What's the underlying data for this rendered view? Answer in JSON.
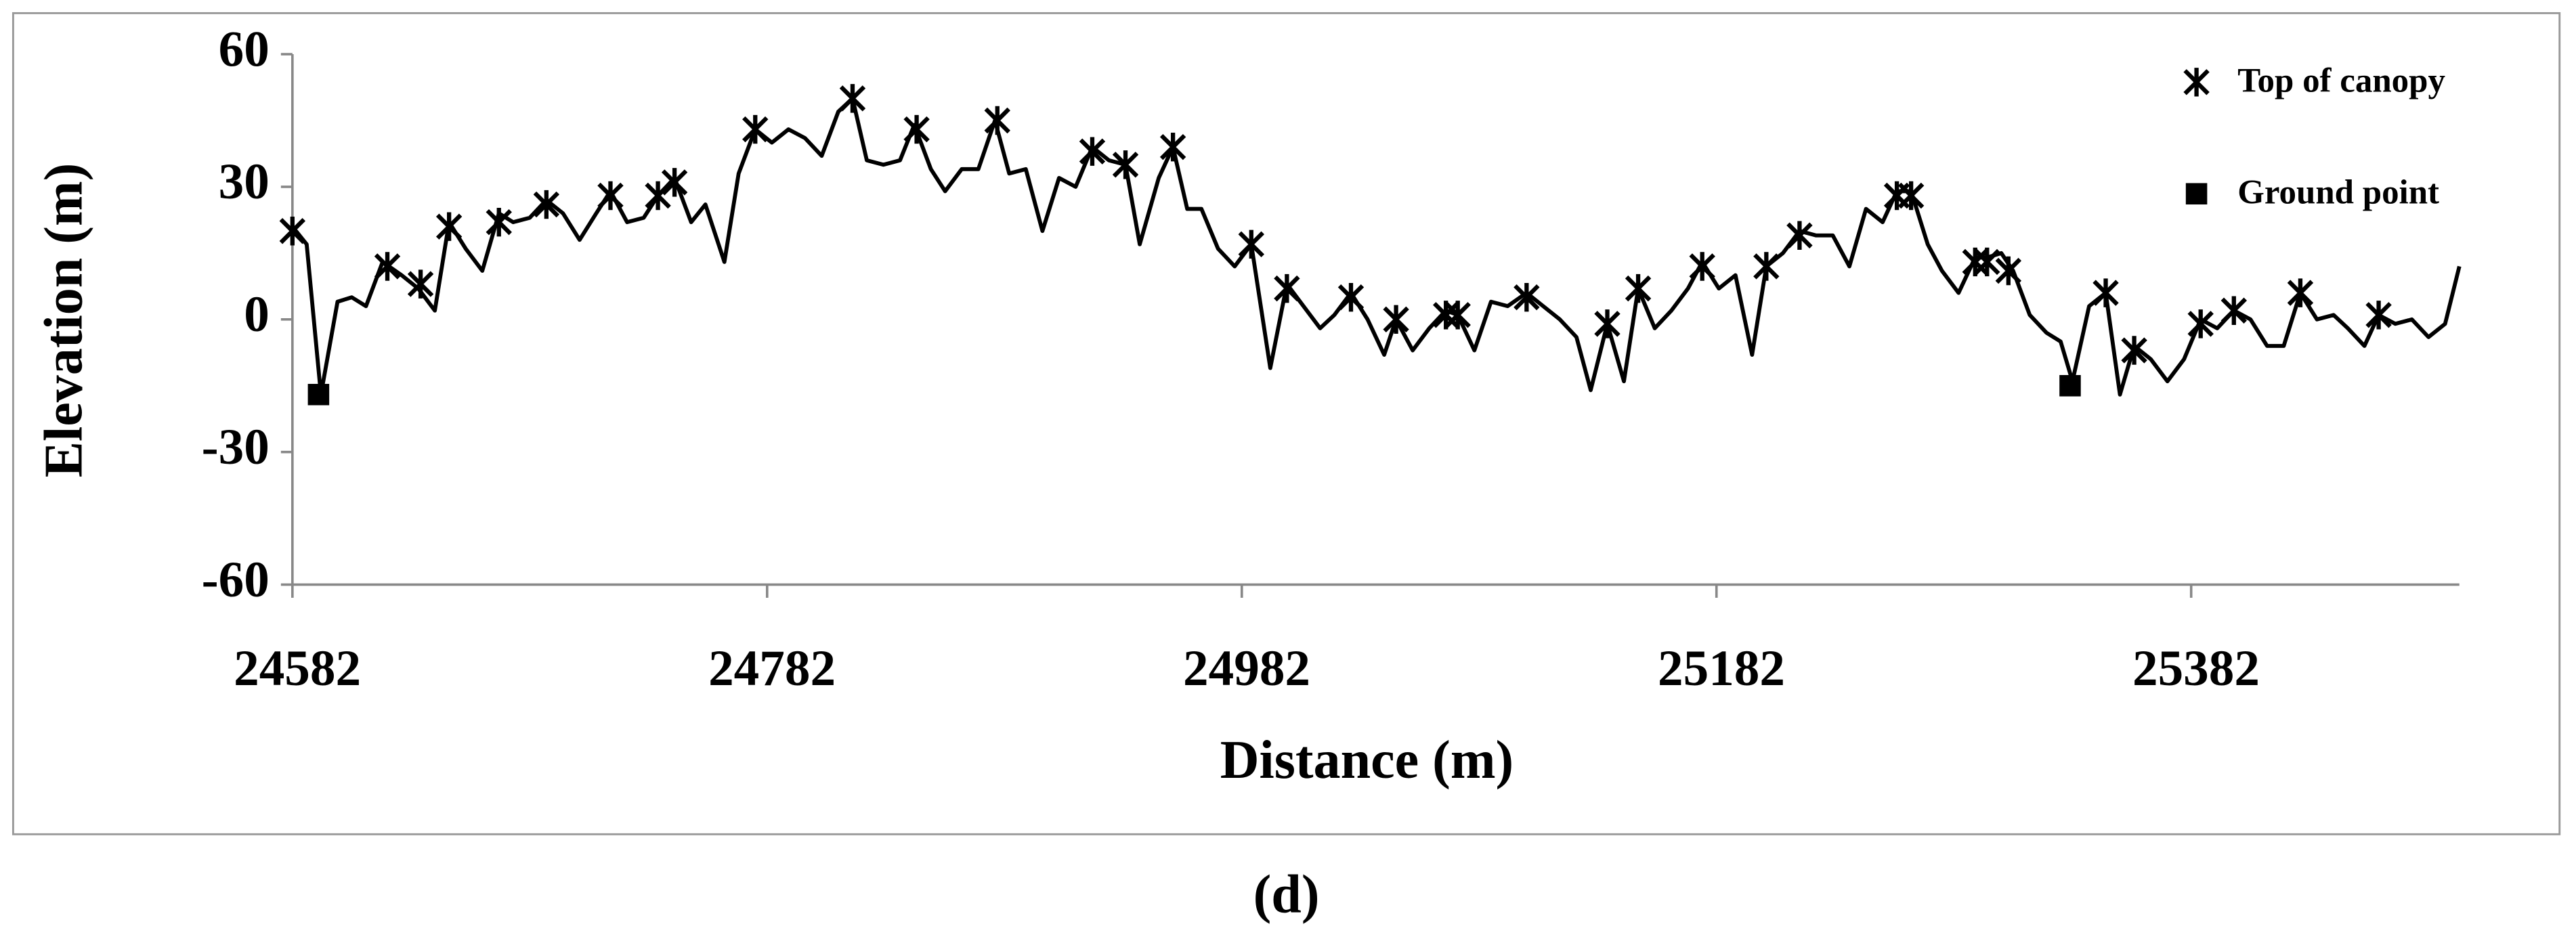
{
  "chart_data": {
    "type": "line",
    "xlabel": "Distance (m)",
    "ylabel": "Elevation (m)",
    "caption": "(d)",
    "color": "#000000",
    "x": [
      24582,
      24588,
      24594,
      24601,
      24607,
      24613,
      24620,
      24628,
      24635,
      24642,
      24648,
      24655,
      24662,
      24669,
      24675,
      24682,
      24689,
      24696,
      24703,
      24710,
      24716,
      24723,
      24730,
      24736,
      24743,
      24750,
      24756,
      24764,
      24770,
      24777,
      24784,
      24791,
      24798,
      24805,
      24812,
      24818,
      24824,
      24831,
      24838,
      24844,
      24851,
      24857,
      24864,
      24871,
      24878,
      24884,
      24891,
      24898,
      24905,
      24912,
      24919,
      24926,
      24933,
      24939,
      24947,
      24953,
      24959,
      24965,
      24972,
      24979,
      24986,
      24994,
      25001,
      25008,
      25015,
      25021,
      25028,
      25035,
      25042,
      25047,
      25054,
      25061,
      25068,
      25073,
      25080,
      25087,
      25094,
      25102,
      25109,
      25116,
      25123,
      25129,
      25136,
      25143,
      25149,
      25156,
      25163,
      25170,
      25176,
      25183,
      25190,
      25197,
      25203,
      25210,
      25217,
      25224,
      25231,
      25238,
      25245,
      25252,
      25258,
      25264,
      25271,
      25277,
      25284,
      25291,
      25296,
      25302,
      25307,
      25314,
      25321,
      25327,
      25332,
      25339,
      25346,
      25352,
      25358,
      25365,
      25372,
      25379,
      25386,
      25393,
      25400,
      25407,
      25414,
      25421,
      25428,
      25435,
      25442,
      25448,
      25455,
      25461,
      25468,
      25475,
      25482,
      25489,
      25495
    ],
    "values": [
      21,
      17,
      -17,
      4,
      5,
      3,
      13,
      10,
      7,
      2,
      22,
      16,
      11,
      24,
      22,
      23,
      27,
      24,
      18,
      24,
      29,
      22,
      23,
      28,
      32,
      22,
      26,
      13,
      33,
      43,
      40,
      43,
      41,
      37,
      47,
      50,
      36,
      35,
      36,
      44,
      34,
      29,
      34,
      34,
      45,
      33,
      34,
      20,
      32,
      30,
      39,
      36,
      35,
      17,
      32,
      39,
      25,
      25,
      16,
      12,
      17,
      -11,
      8,
      3,
      -2,
      1,
      6,
      0,
      -8,
      0,
      -7,
      -2,
      2,
      1,
      -7,
      4,
      3,
      6,
      3,
      0,
      -4,
      -16,
      -1,
      -14,
      7,
      -2,
      2,
      7,
      13,
      7,
      10,
      -8,
      12,
      15,
      20,
      19,
      19,
      12,
      25,
      22,
      29,
      29,
      17,
      11,
      6,
      14,
      14,
      15,
      11,
      1,
      -3,
      -5,
      -14,
      3,
      6,
      -17,
      -6,
      -9,
      -14,
      -9,
      0,
      -2,
      2,
      0,
      -6,
      -6,
      6,
      0,
      1,
      -2,
      -6,
      1,
      -1,
      0,
      -4,
      -1,
      12
    ],
    "series": [
      {
        "name": "Top of canopy",
        "marker": "asterisk",
        "color": "#000000",
        "x": [
          24582,
          24622,
          24636,
          24648,
          24669,
          24689,
          24716,
          24736,
          24743,
          24777,
          24818,
          24845,
          24879,
          24919,
          24933,
          24953,
          24986,
          25001,
          25028,
          25047,
          25068,
          25073,
          25102,
          25136,
          25149,
          25176,
          25203,
          25217,
          25258,
          25264,
          25291,
          25296,
          25305,
          25346,
          25358,
          25386,
          25400,
          25428,
          25461
        ],
        "values": [
          20,
          12,
          8,
          21,
          22,
          26,
          28,
          28,
          31,
          43,
          50,
          43,
          45,
          38,
          35,
          39,
          17,
          7,
          5,
          0,
          1,
          1,
          5,
          -1,
          7,
          12,
          12,
          19,
          28,
          28,
          13,
          13,
          11,
          6,
          -7,
          -1,
          2,
          6,
          1
        ]
      },
      {
        "name": "Ground point",
        "marker": "square",
        "color": "#000000",
        "x": [
          24593,
          25331
        ],
        "values": [
          -17,
          -15
        ]
      }
    ],
    "xlim": [
      24582,
      25495
    ],
    "ylim": [
      -60,
      60
    ],
    "xticks": [
      24582,
      24782,
      24982,
      25182,
      25382
    ],
    "yticks": [
      -60,
      -30,
      0,
      30,
      60
    ],
    "legend": "upper right"
  }
}
